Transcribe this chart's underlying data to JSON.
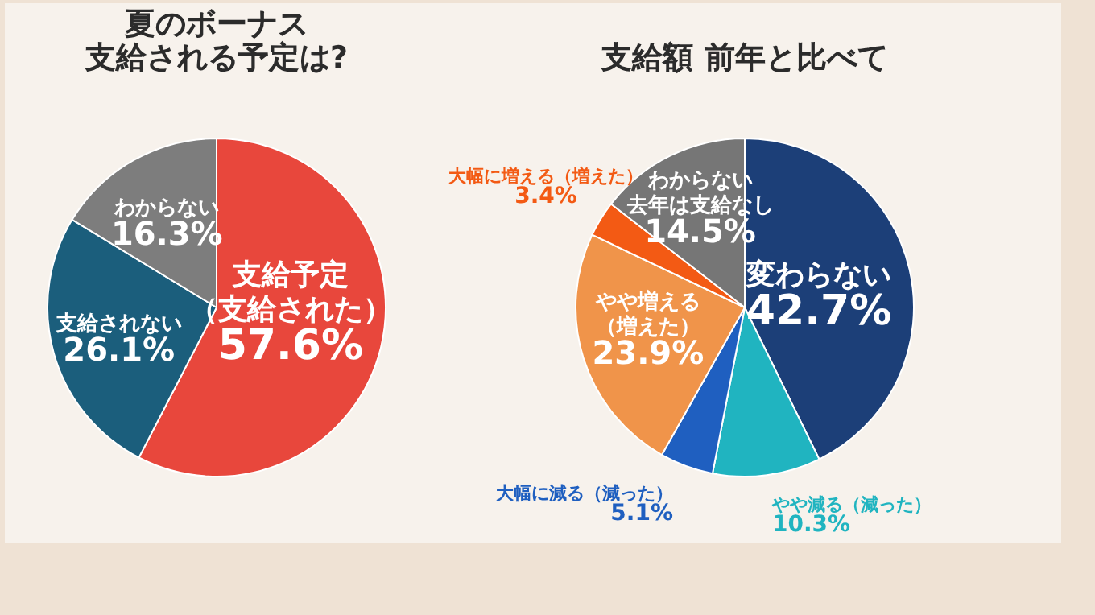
{
  "chart_data": [
    {
      "type": "pie",
      "title": [
        "夏のボーナス",
        "支給される予定は?"
      ],
      "categories": [
        "支給予定（支給された）",
        "支給されない",
        "わからない"
      ],
      "values": [
        57.6,
        26.1,
        16.3
      ],
      "colors": [
        "#e8473c",
        "#1b5e7c",
        "#7d7d7d"
      ],
      "value_labels": [
        "57.6%",
        "26.1%",
        "16.3%"
      ],
      "legend": false
    },
    {
      "type": "pie",
      "title": "支給額 前年と比べて",
      "categories": [
        "変わらない",
        "やや減る（減った）",
        "大幅に減る（減った）",
        "やや増える（増えた）",
        "大幅に増える（増えた）",
        "わからない去年は支給なし"
      ],
      "values": [
        42.7,
        10.3,
        5.1,
        23.9,
        3.4,
        14.5
      ],
      "colors": [
        "#1c3f78",
        "#20b4c0",
        "#1f5fc0",
        "#f0944a",
        "#f35a14",
        "#767676"
      ],
      "value_labels": [
        "42.7%",
        "10.3%",
        "5.1%",
        "23.9%",
        "3.4%",
        "14.5%"
      ],
      "legend": false
    }
  ]
}
